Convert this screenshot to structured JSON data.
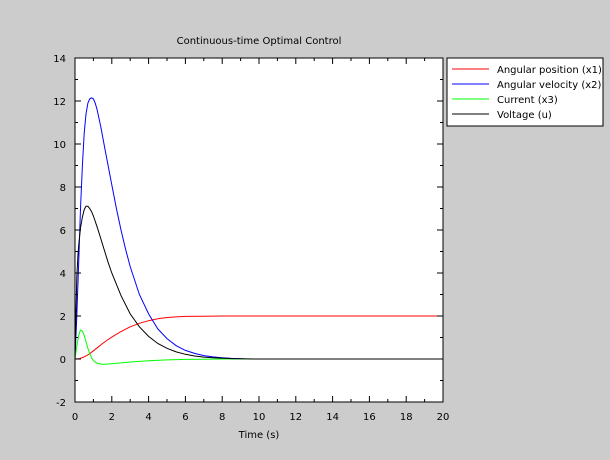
{
  "chart_data": {
    "type": "line",
    "title": "Continuous-time Optimal Control",
    "xlabel": "Time (s)",
    "ylabel": "",
    "xlim": [
      0,
      20
    ],
    "ylim": [
      -2,
      14
    ],
    "xticks": [
      0,
      2,
      4,
      6,
      8,
      10,
      12,
      14,
      16,
      18,
      20
    ],
    "yticks": [
      -2,
      0,
      2,
      4,
      6,
      8,
      10,
      12,
      14
    ],
    "grid": false,
    "legend_position": "outside-top-right",
    "series": [
      {
        "name": "Angular position (x1)",
        "color": "#ff0000",
        "x": [
          0,
          0.25,
          0.5,
          0.75,
          1,
          1.25,
          1.5,
          1.75,
          2,
          2.5,
          3,
          3.5,
          4,
          4.5,
          5,
          5.5,
          6,
          7,
          8,
          10,
          12,
          14,
          16,
          18,
          20
        ],
        "y": [
          0,
          0.02,
          0.1,
          0.22,
          0.38,
          0.55,
          0.72,
          0.88,
          1.02,
          1.28,
          1.5,
          1.66,
          1.78,
          1.87,
          1.93,
          1.96,
          1.98,
          1.99,
          2.0,
          2.0,
          2.0,
          2.0,
          2.0,
          2.0,
          2.0
        ]
      },
      {
        "name": "Angular velocity (x2)",
        "color": "#0000ff",
        "x": [
          0,
          0.1,
          0.2,
          0.3,
          0.4,
          0.5,
          0.6,
          0.7,
          0.8,
          0.9,
          1,
          1.1,
          1.2,
          1.4,
          1.6,
          1.8,
          2,
          2.25,
          2.5,
          2.75,
          3,
          3.5,
          4,
          4.5,
          5,
          5.5,
          6,
          6.5,
          7,
          7.5,
          8,
          8.5,
          9,
          9.3
        ],
        "y": [
          0,
          2.0,
          4.5,
          7.0,
          9.0,
          10.5,
          11.4,
          11.9,
          12.1,
          12.15,
          12.1,
          11.9,
          11.6,
          10.8,
          9.9,
          9.0,
          8.1,
          7.0,
          6.0,
          5.1,
          4.3,
          3.0,
          2.1,
          1.4,
          0.95,
          0.62,
          0.4,
          0.26,
          0.16,
          0.1,
          0.06,
          0.03,
          0.01,
          0
        ]
      },
      {
        "name": "Current (x3)",
        "color": "#00ff00",
        "x": [
          0,
          0.1,
          0.2,
          0.3,
          0.4,
          0.5,
          0.6,
          0.7,
          0.8,
          0.9,
          1,
          1.2,
          1.5,
          2,
          2.5,
          3,
          4,
          5,
          6,
          7,
          8,
          9,
          10,
          12,
          14,
          16,
          18,
          20
        ],
        "y": [
          0,
          0.6,
          1.1,
          1.35,
          1.3,
          1.1,
          0.8,
          0.5,
          0.25,
          0.05,
          -0.08,
          -0.2,
          -0.25,
          -0.22,
          -0.18,
          -0.14,
          -0.08,
          -0.04,
          -0.02,
          -0.01,
          0,
          0,
          0,
          0,
          0,
          0,
          0,
          0
        ]
      },
      {
        "name": "Voltage (u)",
        "color": "#000000",
        "x": [
          0,
          0.05,
          0.1,
          0.15,
          0.2,
          0.3,
          0.4,
          0.5,
          0.6,
          0.7,
          0.8,
          0.9,
          1,
          1.2,
          1.4,
          1.6,
          1.8,
          2,
          2.5,
          3,
          3.5,
          4,
          4.5,
          5,
          5.5,
          6,
          6.5,
          7,
          7.5,
          8,
          8.5,
          9,
          10,
          12,
          14,
          16,
          18,
          20
        ],
        "y": [
          0,
          2.0,
          3.8,
          4.7,
          5.3,
          6.1,
          6.6,
          6.95,
          7.1,
          7.1,
          7.0,
          6.85,
          6.65,
          6.15,
          5.6,
          5.05,
          4.5,
          4.0,
          2.95,
          2.1,
          1.5,
          1.05,
          0.72,
          0.5,
          0.33,
          0.22,
          0.14,
          0.09,
          0.06,
          0.04,
          0.02,
          0.01,
          0,
          0,
          0,
          0,
          0,
          0
        ]
      }
    ]
  }
}
